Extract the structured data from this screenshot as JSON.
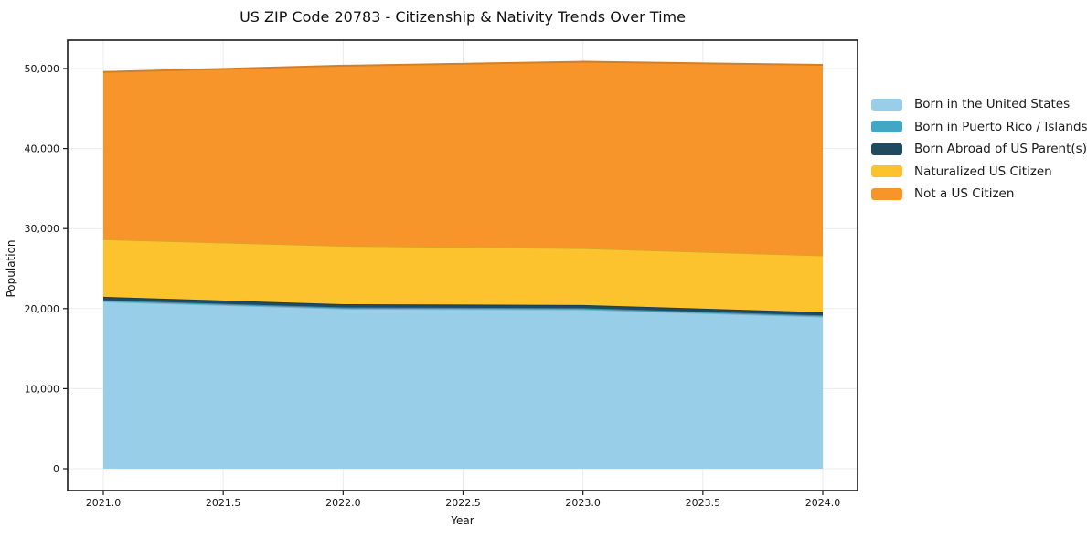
{
  "title": "US ZIP Code 20783 - Citizenship & Nativity Trends Over Time",
  "chart_data": {
    "type": "area",
    "stacked": true,
    "title": "US ZIP Code 20783 - Citizenship & Nativity Trends Over Time",
    "xlabel": "Year",
    "ylabel": "Population",
    "x": [
      2021,
      2022,
      2023,
      2024
    ],
    "series": [
      {
        "name": "Born in the United States",
        "color": "#98CEE7",
        "values": [
          20900,
          20000,
          19900,
          19000
        ]
      },
      {
        "name": "Born in Puerto Rico / Islands",
        "color": "#42A6C5",
        "values": [
          150,
          150,
          150,
          150
        ]
      },
      {
        "name": "Born Abroad of US Parent(s)",
        "color": "#1F4A5F",
        "values": [
          420,
          400,
          400,
          400
        ]
      },
      {
        "name": "Naturalized US Citizen",
        "color": "#FDC32F",
        "values": [
          7200,
          7300,
          7100,
          7100
        ]
      },
      {
        "name": "Not a US Citizen",
        "color": "#F7952B",
        "values": [
          20900,
          22500,
          23300,
          23800
        ]
      }
    ],
    "stacked_totals": [
      49570,
      50350,
      50850,
      50450
    ],
    "xticks": [
      2021.0,
      2021.5,
      2022.0,
      2022.5,
      2023.0,
      2023.5,
      2024.0
    ],
    "xtick_labels": [
      "2021.0",
      "2021.5",
      "2022.0",
      "2022.5",
      "2023.0",
      "2023.5",
      "2024.0"
    ],
    "yticks": [
      0,
      10000,
      20000,
      30000,
      40000,
      50000
    ],
    "ytick_labels": [
      "0",
      "10,000",
      "20,000",
      "30,000",
      "40,000",
      "50,000"
    ],
    "xlim": [
      2020.84,
      2024.14
    ],
    "ylim": [
      -2740,
      53540
    ],
    "grid": true,
    "grid_color": "#ebebeb",
    "frame_color": "#1a1a1a",
    "legend_position": "right"
  }
}
